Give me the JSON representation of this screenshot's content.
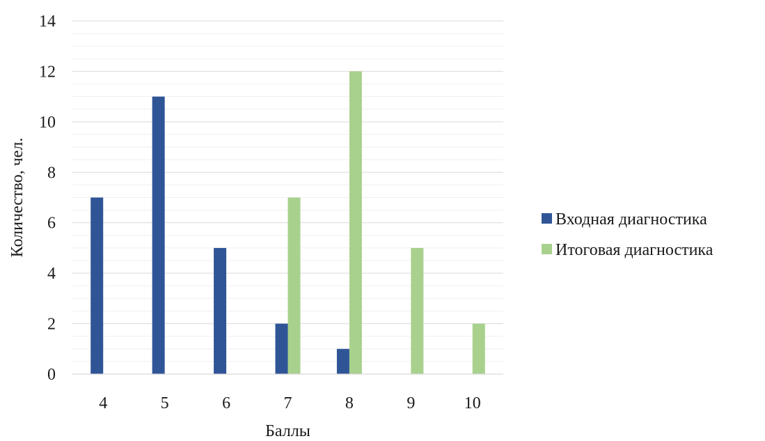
{
  "chart_data": {
    "type": "bar",
    "categories": [
      "4",
      "5",
      "6",
      "7",
      "8",
      "9",
      "10"
    ],
    "series": [
      {
        "name": "Входная диагностика",
        "values": [
          7,
          11,
          5,
          2,
          1,
          0,
          0
        ],
        "color": "#2f5597"
      },
      {
        "name": "Итоговая диагностика",
        "values": [
          0,
          0,
          0,
          7,
          12,
          5,
          2
        ],
        "color": "#a9d18e"
      }
    ],
    "xlabel": "Баллы",
    "ylabel": "Количество, чел.",
    "ylim": [
      0,
      14
    ],
    "yticks": [
      "0",
      "2",
      "4",
      "6",
      "8",
      "10",
      "12",
      "14"
    ],
    "grid": true,
    "minor_grid": true,
    "legend_position": "right"
  }
}
